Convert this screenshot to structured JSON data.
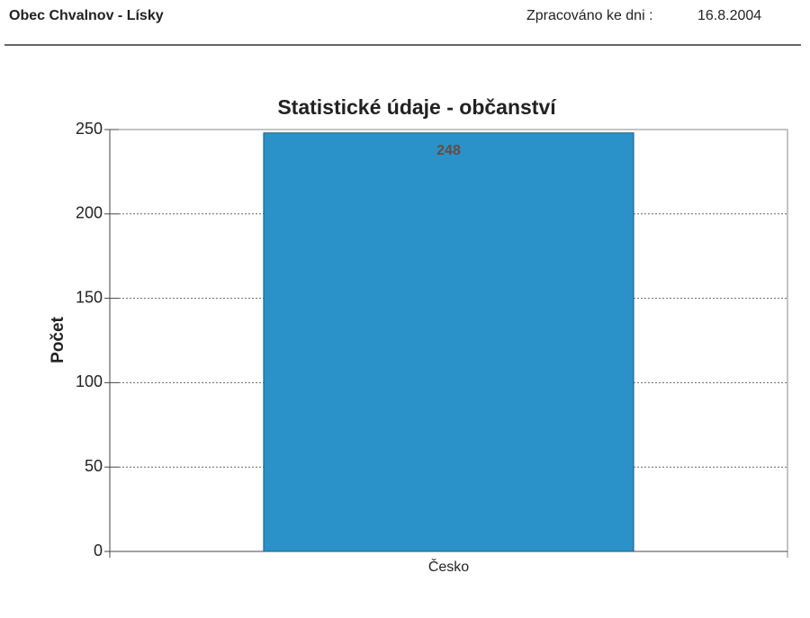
{
  "header": {
    "title": "Obec Chvalnov - Lísky",
    "date_label": "Zpracováno ke dni :",
    "date": "16.8.2004"
  },
  "chart_data": {
    "type": "bar",
    "title": "Statistické údaje - občanství",
    "y_label": "Počet",
    "categories": [
      "Česko"
    ],
    "values": [
      248
    ],
    "color": "#2a92c8",
    "ylim": [
      0,
      250
    ],
    "yticks": [
      0,
      50,
      100,
      150,
      200,
      250
    ],
    "grid": true
  }
}
